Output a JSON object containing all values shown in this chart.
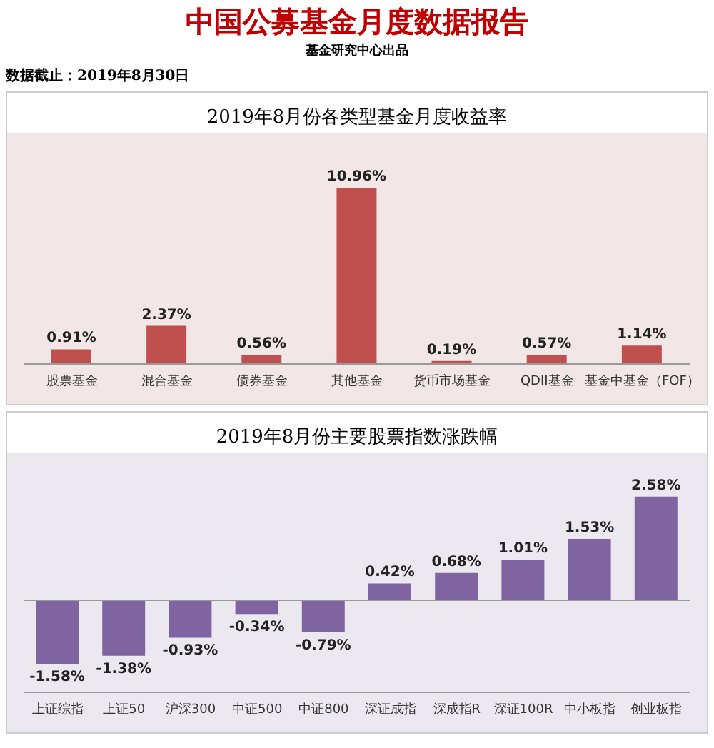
{
  "chart_data": [
    {
      "type": "bar",
      "title": "2019年8月份各类型基金月度收益率",
      "annotations": [
        "中国公募基金月度数据报告",
        "基金研究中心出品",
        "数据截止：2019年8月30日"
      ],
      "categories": [
        "股票基金",
        "混合基金",
        "债券基金",
        "其他基金",
        "货币市场基金",
        "QDII基金",
        "基金中基金（FOF）"
      ],
      "values": [
        0.91,
        2.37,
        0.56,
        10.96,
        0.19,
        0.57,
        1.14
      ],
      "value_labels": [
        "0.91%",
        "2.37%",
        "0.56%",
        "10.96%",
        "0.19%",
        "0.57%",
        "1.14%"
      ],
      "color": "#c0504d",
      "grid": false,
      "legend": false
    },
    {
      "type": "bar",
      "title": "2019年8月份主要股票指数涨跌幅",
      "categories": [
        "上证综指",
        "上证50",
        "沪深300",
        "中证500",
        "中证800",
        "深证成指",
        "深成指R",
        "深证100R",
        "中小板指",
        "创业板指"
      ],
      "values": [
        -1.58,
        -1.38,
        -0.93,
        -0.34,
        -0.79,
        0.42,
        0.68,
        1.01,
        1.53,
        2.58
      ],
      "value_labels": [
        "-1.58%",
        "-1.38%",
        "-0.93%",
        "-0.34%",
        "-0.79%",
        "0.42%",
        "0.68%",
        "1.01%",
        "1.53%",
        "2.58%"
      ],
      "color": "#8064a2",
      "grid": false,
      "legend": false
    }
  ]
}
